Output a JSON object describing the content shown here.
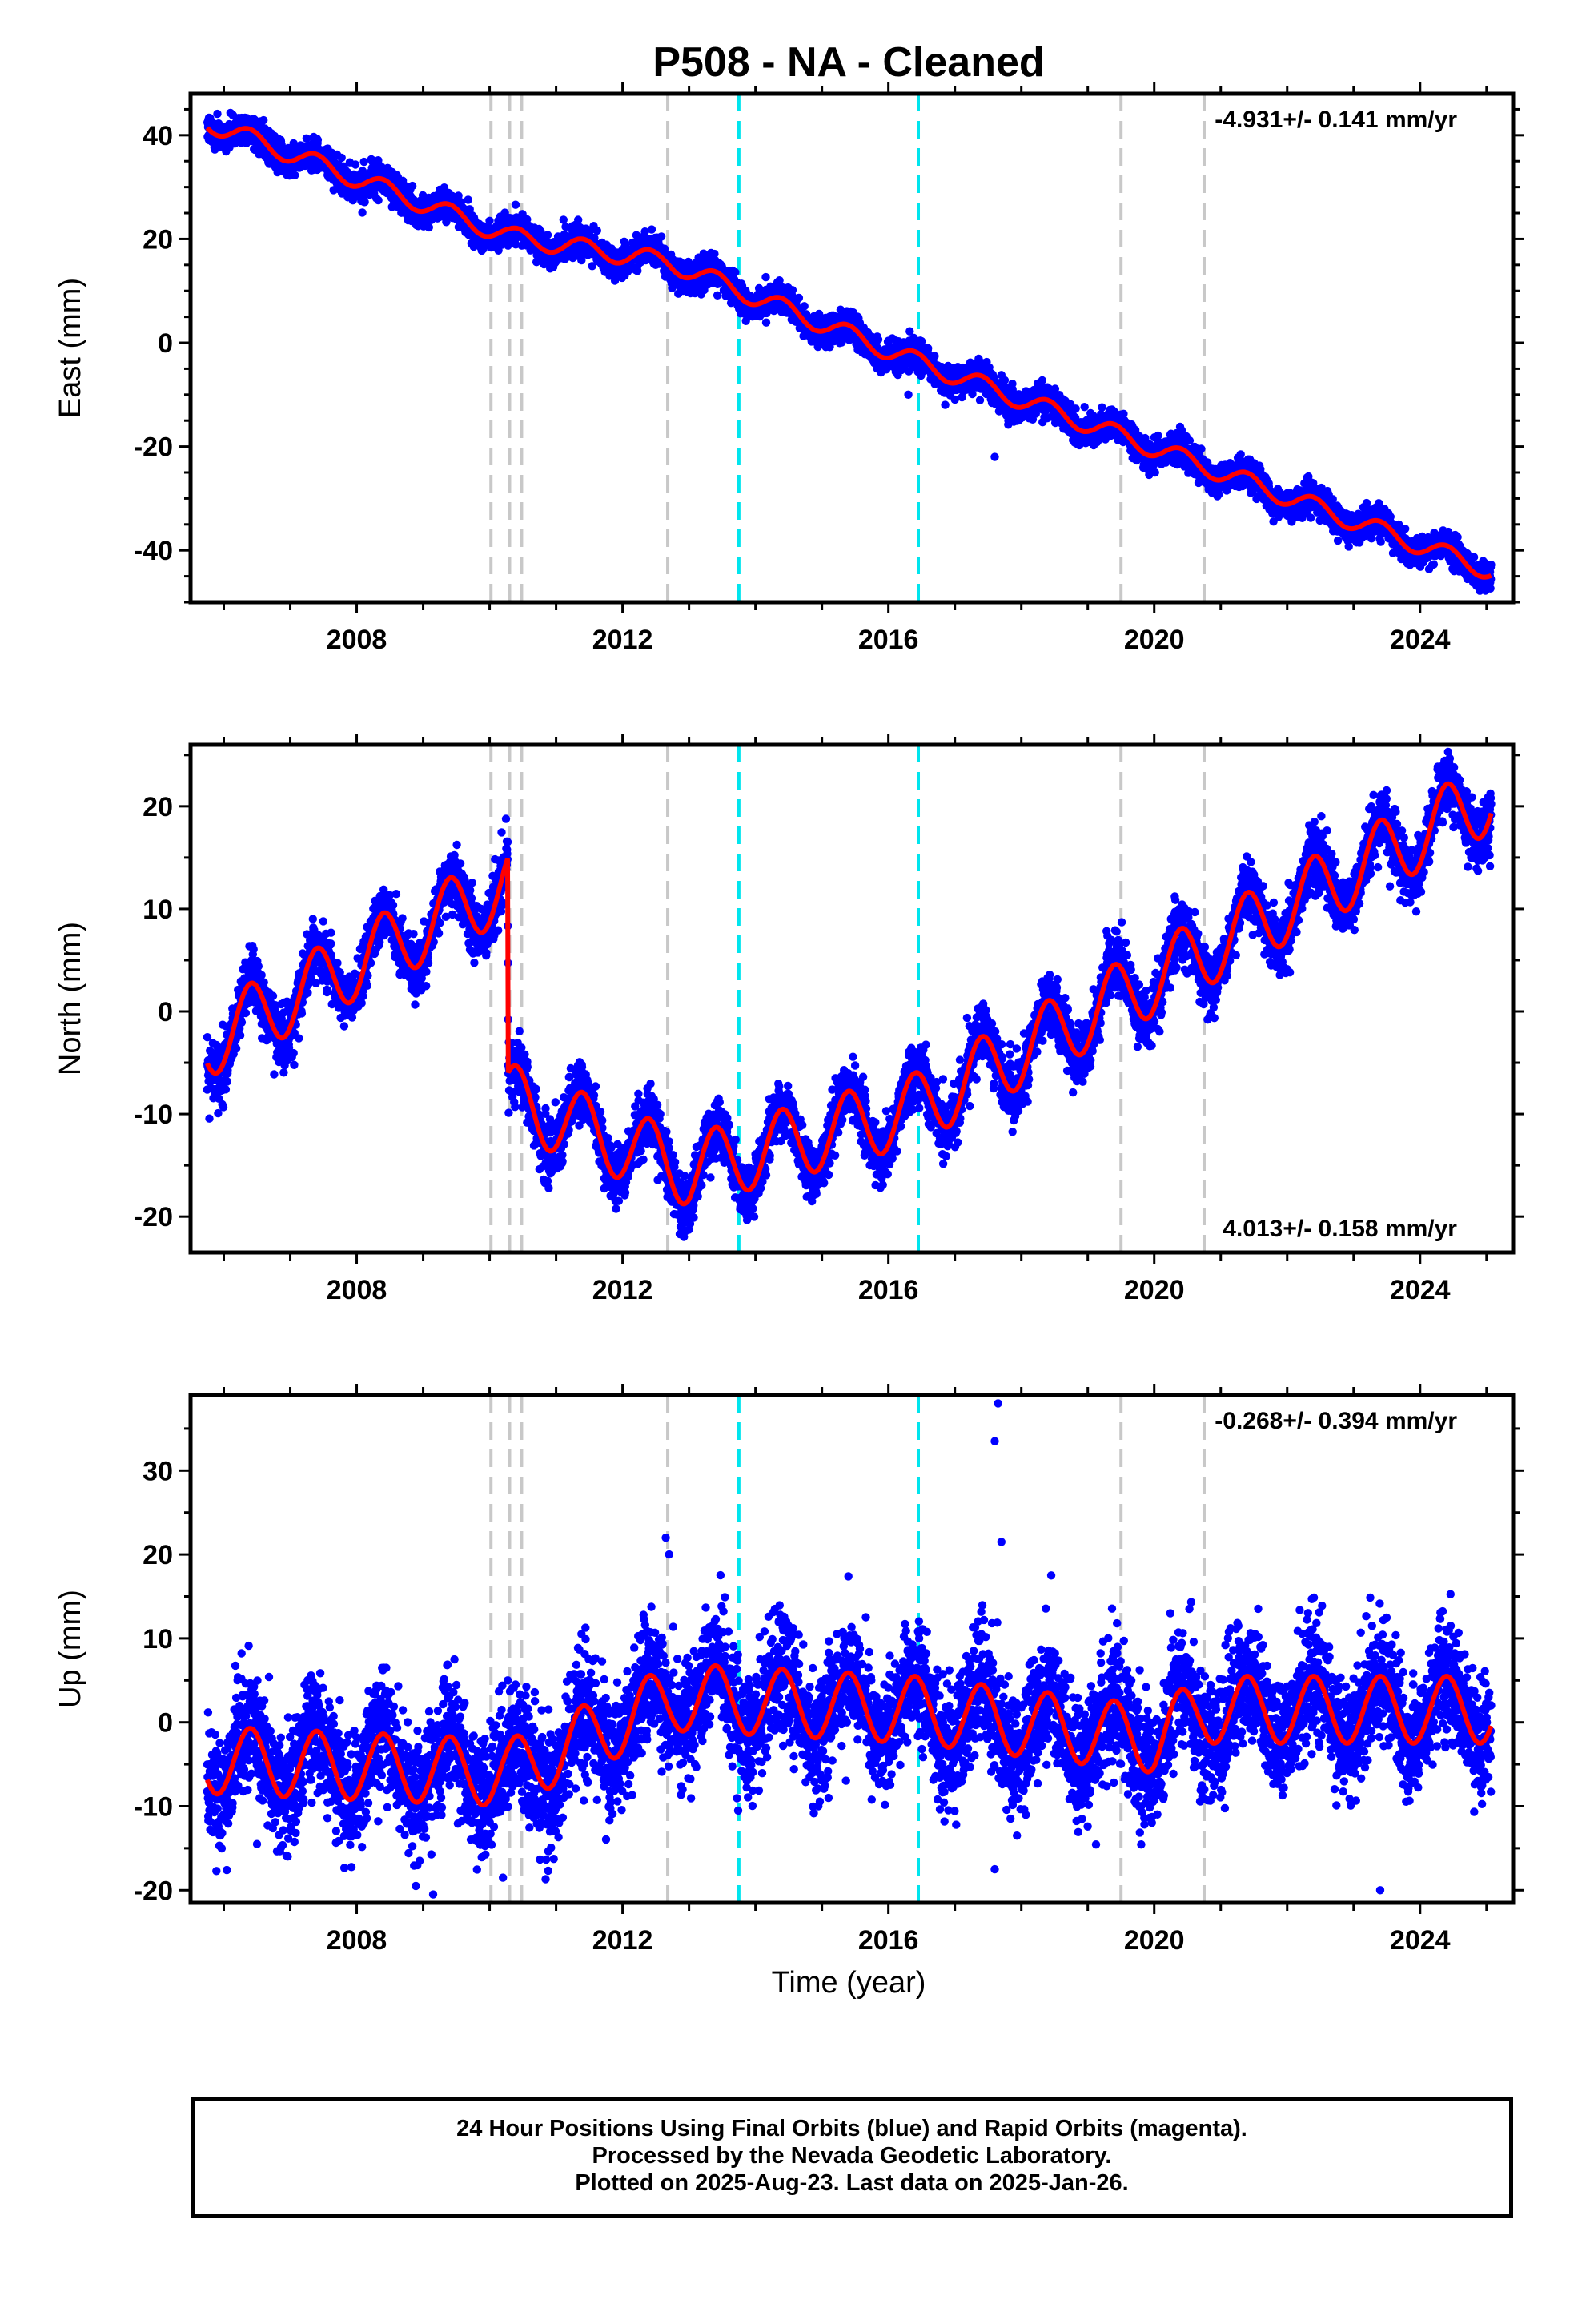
{
  "title": "P508  - NA - Cleaned",
  "colors": {
    "observations": "#0000ff",
    "model": "#ff0000",
    "equipment_change": "#c8c8c8",
    "earthquake": "#00e5ee",
    "frame": "#000000"
  },
  "xlabel": "Time (year)",
  "footer": {
    "line1": "24 Hour Positions Using Final Orbits (blue) and Rapid Orbits (magenta).",
    "line2": "Processed by the Nevada Geodetic Laboratory.",
    "line3": "Plotted on 2025-Aug-23. Last data on 2025-Jan-26."
  },
  "chart_data": [
    {
      "type": "scatter",
      "component": "east",
      "ylabel": "East (mm)",
      "xlim": [
        2005.5,
        2025.4
      ],
      "ylim": [
        -50,
        48
      ],
      "xticks": [
        2008,
        2012,
        2016,
        2020,
        2024
      ],
      "yticks": [
        -40,
        -20,
        0,
        20,
        40
      ],
      "rate_label": "-4.931+/- 0.141 mm/yr",
      "rate_position": "top-right",
      "data_range": [
        2005.75,
        2025.07
      ],
      "trend": {
        "x": [
          2005.75,
          2010.3,
          2012.7,
          2016.4,
          2025.07
        ],
        "y": [
          42.5,
          20.5,
          15.5,
          -3.5,
          -44.0
        ]
      },
      "annual_amplitude_mm": 1.8,
      "scatter_noise_mm": 1.4,
      "outliers": [
        {
          "x": 2016.3,
          "y": -10
        },
        {
          "x": 2017.6,
          "y": -22
        }
      ],
      "series": [
        {
          "name": "24 Hour Positions",
          "style": "points"
        },
        {
          "name": "model",
          "style": "line"
        }
      ]
    },
    {
      "type": "scatter",
      "component": "north",
      "ylabel": "North (mm)",
      "xlim": [
        2005.5,
        2025.4
      ],
      "ylim": [
        -23.5,
        26
      ],
      "xticks": [
        2008,
        2012,
        2016,
        2020,
        2024
      ],
      "yticks": [
        -20,
        -10,
        0,
        10,
        20
      ],
      "rate_label": "4.013+/- 0.158 mm/yr",
      "rate_position": "bottom-right",
      "data_range": [
        2005.75,
        2025.07
      ],
      "trend": {
        "x": [
          2005.75,
          2010.27,
          2010.28,
          2013.0,
          2016.4,
          2025.07
        ],
        "y": [
          -3.0,
          12.5,
          -8.5,
          -15.5,
          -9.5,
          21.0
        ]
      },
      "annual_amplitude_mm": 3.5,
      "scatter_noise_mm": 1.4,
      "outliers": [],
      "series": [
        {
          "name": "24 Hour Positions",
          "style": "points"
        },
        {
          "name": "model",
          "style": "line"
        }
      ]
    },
    {
      "type": "scatter",
      "component": "up",
      "ylabel": "Up (mm)",
      "xlim": [
        2005.5,
        2025.4
      ],
      "ylim": [
        -21.5,
        39
      ],
      "xticks": [
        2008,
        2012,
        2016,
        2020,
        2024
      ],
      "yticks": [
        -20,
        -10,
        0,
        10,
        20,
        30
      ],
      "rate_label": "-0.268+/- 0.394 mm/yr",
      "rate_position": "top-right",
      "data_range": [
        2005.75,
        2025.07
      ],
      "trend": {
        "x": [
          2005.75,
          2010.3,
          2012.8,
          2016.4,
          2020.0,
          2020.75,
          2025.07
        ],
        "y": [
          -4.5,
          -6.0,
          3.0,
          1.5,
          -2.0,
          1.5,
          1.5
        ]
      },
      "annual_amplitude_mm": 4.0,
      "scatter_noise_mm": 3.6,
      "outliers": [
        {
          "x": 2017.65,
          "y": 38
        },
        {
          "x": 2017.6,
          "y": 33.5
        },
        {
          "x": 2017.7,
          "y": 21.5
        },
        {
          "x": 2012.65,
          "y": 22
        },
        {
          "x": 2012.7,
          "y": 20
        },
        {
          "x": 2018.45,
          "y": 17.5
        },
        {
          "x": 2017.6,
          "y": -17.5
        },
        {
          "x": 2009.15,
          "y": -20.5
        },
        {
          "x": 2023.4,
          "y": -20
        },
        {
          "x": 2010.2,
          "y": -18.5
        },
        {
          "x": 2006.5,
          "y": -14.5
        }
      ],
      "series": [
        {
          "name": "24 Hour Positions",
          "style": "points"
        },
        {
          "name": "model",
          "style": "line"
        }
      ]
    }
  ],
  "equipment_changes": [
    2010.02,
    2010.3,
    2010.48,
    2012.68,
    2019.5,
    2020.75
  ],
  "earthquakes": [
    2013.75,
    2016.45
  ]
}
